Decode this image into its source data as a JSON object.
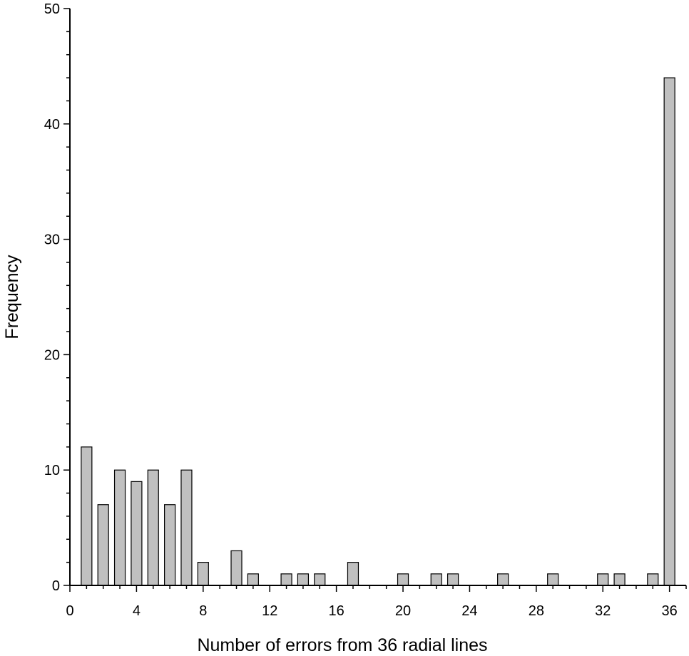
{
  "chart_data": {
    "type": "bar",
    "title": "",
    "xlabel": "Number of errors from 36 radial lines",
    "ylabel": "Frequency",
    "xlim": [
      0,
      37
    ],
    "ylim": [
      0,
      50
    ],
    "x_ticks": [
      0,
      4,
      8,
      12,
      16,
      20,
      24,
      28,
      32,
      36
    ],
    "y_ticks": [
      0,
      10,
      20,
      30,
      40,
      50
    ],
    "bar_color": "#c0c0c0",
    "bar_edge_color": "#000000",
    "grid": false,
    "legend": "none",
    "x": [
      1,
      2,
      3,
      4,
      5,
      6,
      7,
      8,
      10,
      11,
      13,
      14,
      15,
      17,
      20,
      22,
      23,
      26,
      29,
      32,
      33,
      35,
      36
    ],
    "values": [
      12,
      7,
      10,
      9,
      10,
      7,
      10,
      2,
      3,
      1,
      1,
      1,
      1,
      2,
      1,
      1,
      1,
      1,
      1,
      1,
      1,
      1,
      44
    ]
  }
}
